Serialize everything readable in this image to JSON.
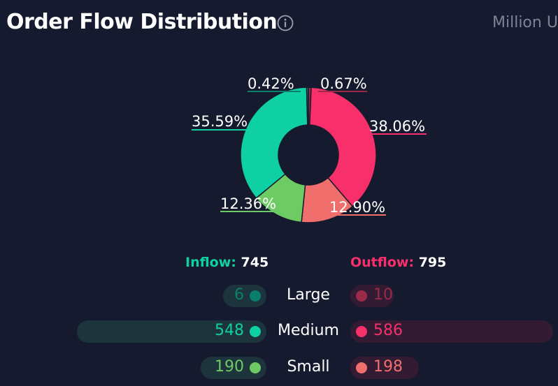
{
  "header": {
    "title": "Order Flow Distribution",
    "unit_label": "Million U"
  },
  "colors": {
    "inflow_accent": "#0ed0a2",
    "outflow_accent": "#f7306c",
    "background": "#161a2e"
  },
  "chart_data": {
    "type": "pie",
    "donut": true,
    "title": "Order Flow Distribution",
    "slices": [
      {
        "name": "Outflow Large",
        "value": 0.67,
        "label": "0.67%",
        "color": "#9b2a4a"
      },
      {
        "name": "Outflow Medium",
        "value": 38.06,
        "label": "38.06%",
        "color": "#f7306c"
      },
      {
        "name": "Outflow Small",
        "value": 12.9,
        "label": "12.90%",
        "color": "#f06f6c"
      },
      {
        "name": "Inflow Small",
        "value": 12.36,
        "label": "12.36%",
        "color": "#6ecb63"
      },
      {
        "name": "Inflow Medium",
        "value": 35.59,
        "label": "35.59%",
        "color": "#0ed0a2"
      },
      {
        "name": "Inflow Large",
        "value": 0.42,
        "label": "0.42%",
        "color": "#0a7f6c"
      }
    ]
  },
  "summary": {
    "inflow_label": "Inflow:",
    "inflow_total": "745",
    "outflow_label": "Outflow:",
    "outflow_total": "795"
  },
  "rows": [
    {
      "label": "Large",
      "inflow": 6,
      "outflow": 10,
      "in_color": "#0a7f6c",
      "out_color": "#9b2a4a"
    },
    {
      "label": "Medium",
      "inflow": 548,
      "outflow": 586,
      "in_color": "#0ed0a2",
      "out_color": "#f7306c"
    },
    {
      "label": "Small",
      "inflow": 190,
      "outflow": 198,
      "in_color": "#6ecb63",
      "out_color": "#f06f6c"
    }
  ]
}
